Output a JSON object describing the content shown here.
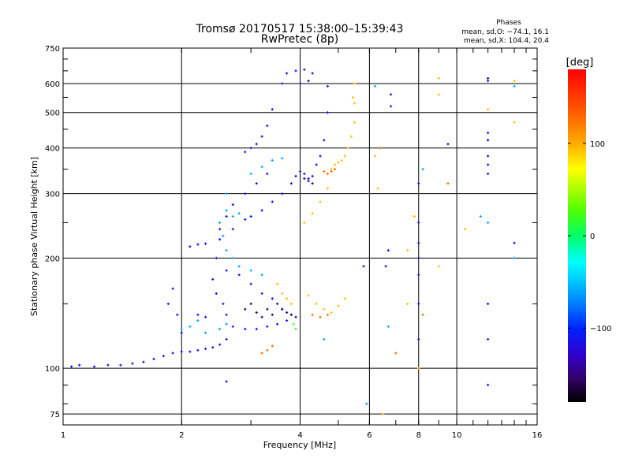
{
  "chart_data": {
    "type": "scatter",
    "title": "Tromsø 20170517 15:38:00–15:39:43",
    "subtitle": "RwPretec (8p)",
    "xlabel": "Frequency [MHz]",
    "ylabel": "Stationary phase Virtual Height [km]",
    "x_scale": "log2",
    "y_scale": "log",
    "xlim": [
      1,
      16
    ],
    "ylim": [
      70,
      750
    ],
    "x_ticks": [
      1,
      2,
      4,
      6,
      8,
      10,
      16
    ],
    "x_tick_labels": [
      "1",
      "2",
      "4",
      "6",
      "8",
      "10",
      "16"
    ],
    "y_ticks": [
      75,
      100,
      200,
      300,
      400,
      500,
      600,
      750
    ],
    "y_tick_labels": [
      "75",
      "100",
      "200",
      "300",
      "400",
      "500",
      "600",
      "750"
    ],
    "grid": true,
    "phase_box": {
      "title": "Phases",
      "line1": "mean, sd,O: −74.1, 16.1",
      "line2": "mean, sd,X: 104.4, 20.4"
    },
    "colorbar": {
      "label": "[deg]",
      "range": [
        -180,
        180
      ],
      "ticks": [
        100,
        0,
        -100
      ],
      "tick_labels": [
        "100",
        "0",
        "−100"
      ]
    },
    "series": [
      {
        "color_value": -110,
        "points": [
          [
            1.05,
            101
          ],
          [
            1.1,
            102
          ],
          [
            1.2,
            101
          ],
          [
            1.3,
            102
          ],
          [
            1.4,
            102
          ],
          [
            1.5,
            103
          ],
          [
            1.6,
            104
          ],
          [
            1.7,
            106
          ],
          [
            1.8,
            108
          ],
          [
            1.9,
            110
          ],
          [
            2.0,
            111
          ],
          [
            2.1,
            111
          ],
          [
            2.2,
            112
          ],
          [
            2.3,
            113
          ],
          [
            2.4,
            114
          ],
          [
            2.5,
            116
          ],
          [
            2.6,
            120
          ],
          [
            1.85,
            150
          ],
          [
            1.9,
            165
          ],
          [
            1.95,
            140
          ],
          [
            2.0,
            125
          ],
          [
            2.1,
            215
          ],
          [
            2.2,
            218
          ],
          [
            2.3,
            219
          ],
          [
            2.5,
            225
          ],
          [
            2.7,
            240
          ],
          [
            2.9,
            255
          ],
          [
            3.0,
            260
          ],
          [
            3.2,
            270
          ],
          [
            3.4,
            285
          ],
          [
            3.6,
            300
          ],
          [
            3.8,
            320
          ],
          [
            3.9,
            335
          ],
          [
            4.0,
            345
          ],
          [
            4.1,
            340
          ],
          [
            4.2,
            330
          ],
          [
            4.3,
            335
          ],
          [
            4.4,
            360
          ],
          [
            4.5,
            380
          ],
          [
            4.6,
            420
          ],
          [
            4.7,
            500
          ],
          [
            4.7,
            590
          ],
          [
            3.6,
            600
          ],
          [
            3.7,
            640
          ],
          [
            3.9,
            650
          ],
          [
            4.1,
            655
          ],
          [
            4.3,
            640
          ],
          [
            3.4,
            510
          ],
          [
            3.3,
            460
          ],
          [
            3.2,
            430
          ],
          [
            3.1,
            410
          ],
          [
            3.0,
            400
          ],
          [
            2.9,
            390
          ],
          [
            3.3,
            340
          ],
          [
            3.1,
            320
          ],
          [
            2.9,
            300
          ],
          [
            2.7,
            280
          ],
          [
            2.6,
            260
          ],
          [
            2.5,
            240
          ],
          [
            2.45,
            200
          ],
          [
            2.4,
            175
          ],
          [
            2.45,
            160
          ],
          [
            2.55,
            150
          ],
          [
            2.6,
            140
          ],
          [
            2.7,
            130
          ],
          [
            2.9,
            128
          ],
          [
            3.1,
            128
          ],
          [
            3.3,
            130
          ],
          [
            3.5,
            132
          ],
          [
            3.7,
            135
          ],
          [
            2.2,
            140
          ],
          [
            2.3,
            138
          ],
          [
            2.6,
            185
          ],
          [
            2.8,
            180
          ],
          [
            3.0,
            170
          ],
          [
            3.2,
            160
          ],
          [
            3.4,
            155
          ],
          [
            3.6,
            145
          ],
          [
            3.8,
            140
          ],
          [
            8.0,
            320
          ],
          [
            8.0,
            250
          ],
          [
            8.0,
            220
          ],
          [
            8.0,
            180
          ],
          [
            8.0,
            150
          ],
          [
            8.0,
            120
          ],
          [
            9.5,
            410
          ],
          [
            12.0,
            610
          ],
          [
            12.0,
            440
          ],
          [
            12.0,
            380
          ],
          [
            12.0,
            360
          ],
          [
            12.0,
            340
          ],
          [
            12.0,
            150
          ],
          [
            12.0,
            120
          ],
          [
            12.0,
            90
          ],
          [
            14.0,
            220
          ],
          [
            6.8,
            560
          ],
          [
            6.8,
            520
          ],
          [
            6.7,
            210
          ],
          [
            6.6,
            190
          ],
          [
            5.8,
            190
          ],
          [
            2.6,
            92
          ]
        ]
      },
      {
        "color_value": -140,
        "points": [
          [
            3.5,
            150
          ],
          [
            3.6,
            145
          ],
          [
            3.7,
            142
          ],
          [
            3.8,
            140
          ],
          [
            3.9,
            138
          ],
          [
            3.4,
            140
          ],
          [
            3.3,
            145
          ],
          [
            3.2,
            138
          ],
          [
            3.1,
            142
          ],
          [
            3.0,
            150
          ],
          [
            2.9,
            145
          ],
          [
            4.1,
            330
          ],
          [
            4.2,
            325
          ],
          [
            4.3,
            320
          ],
          [
            4.0,
            600
          ],
          [
            4.2,
            610
          ],
          [
            12.0,
            620
          ],
          [
            8.0,
            200
          ],
          [
            12.0,
            420
          ]
        ]
      },
      {
        "color_value": -60,
        "points": [
          [
            2.6,
            270
          ],
          [
            2.7,
            260
          ],
          [
            2.8,
            265
          ],
          [
            2.5,
            250
          ],
          [
            2.6,
            300
          ],
          [
            2.55,
            230
          ],
          [
            2.6,
            210
          ],
          [
            2.7,
            200
          ],
          [
            2.8,
            190
          ],
          [
            3.0,
            185
          ],
          [
            3.2,
            180
          ],
          [
            2.2,
            135
          ],
          [
            2.1,
            130
          ],
          [
            2.0,
            128
          ],
          [
            2.3,
            125
          ],
          [
            2.5,
            128
          ],
          [
            2.6,
            132
          ],
          [
            3.6,
            375
          ],
          [
            3.4,
            370
          ],
          [
            3.2,
            355
          ],
          [
            3.0,
            340
          ],
          [
            6.2,
            590
          ],
          [
            8.2,
            350
          ],
          [
            11.5,
            260
          ],
          [
            14.0,
            590
          ],
          [
            14.0,
            200
          ],
          [
            5.9,
            80
          ],
          [
            4.6,
            120
          ],
          [
            6.7,
            130
          ],
          [
            12.0,
            250
          ]
        ]
      },
      {
        "color_value": 20,
        "points": [
          [
            3.85,
            132
          ],
          [
            3.9,
            128
          ]
        ]
      },
      {
        "color_value": 120,
        "points": [
          [
            4.8,
            350
          ],
          [
            4.9,
            360
          ],
          [
            5.0,
            365
          ],
          [
            5.1,
            370
          ],
          [
            5.2,
            380
          ],
          [
            5.3,
            400
          ],
          [
            5.4,
            430
          ],
          [
            5.5,
            470
          ],
          [
            5.5,
            530
          ],
          [
            5.5,
            600
          ],
          [
            5.45,
            550
          ],
          [
            4.1,
            250
          ],
          [
            4.3,
            265
          ],
          [
            4.5,
            285
          ],
          [
            4.7,
            310
          ],
          [
            3.5,
            170
          ],
          [
            3.6,
            160
          ],
          [
            3.7,
            155
          ],
          [
            3.8,
            150
          ],
          [
            4.2,
            158
          ],
          [
            4.4,
            150
          ],
          [
            4.6,
            145
          ],
          [
            4.8,
            142
          ],
          [
            5.0,
            148
          ],
          [
            5.2,
            155
          ],
          [
            6.2,
            380
          ],
          [
            6.3,
            310
          ],
          [
            7.5,
            150
          ],
          [
            7.8,
            260
          ],
          [
            8.0,
            100
          ],
          [
            9.0,
            620
          ],
          [
            9.0,
            560
          ],
          [
            9.0,
            190
          ],
          [
            10.5,
            240
          ],
          [
            12.0,
            510
          ],
          [
            14.0,
            470
          ],
          [
            14.0,
            610
          ],
          [
            7.5,
            210
          ],
          [
            6.5,
            75
          ]
        ]
      },
      {
        "color_value": 150,
        "points": [
          [
            4.6,
            345
          ],
          [
            4.7,
            340
          ],
          [
            4.8,
            345
          ],
          [
            4.9,
            350
          ],
          [
            4.3,
            140
          ],
          [
            4.5,
            138
          ],
          [
            4.7,
            140
          ],
          [
            3.2,
            110
          ],
          [
            3.3,
            112
          ],
          [
            3.4,
            115
          ],
          [
            6.4,
            400
          ],
          [
            9.5,
            320
          ],
          [
            7.0,
            110
          ],
          [
            8.2,
            140
          ]
        ]
      }
    ]
  }
}
